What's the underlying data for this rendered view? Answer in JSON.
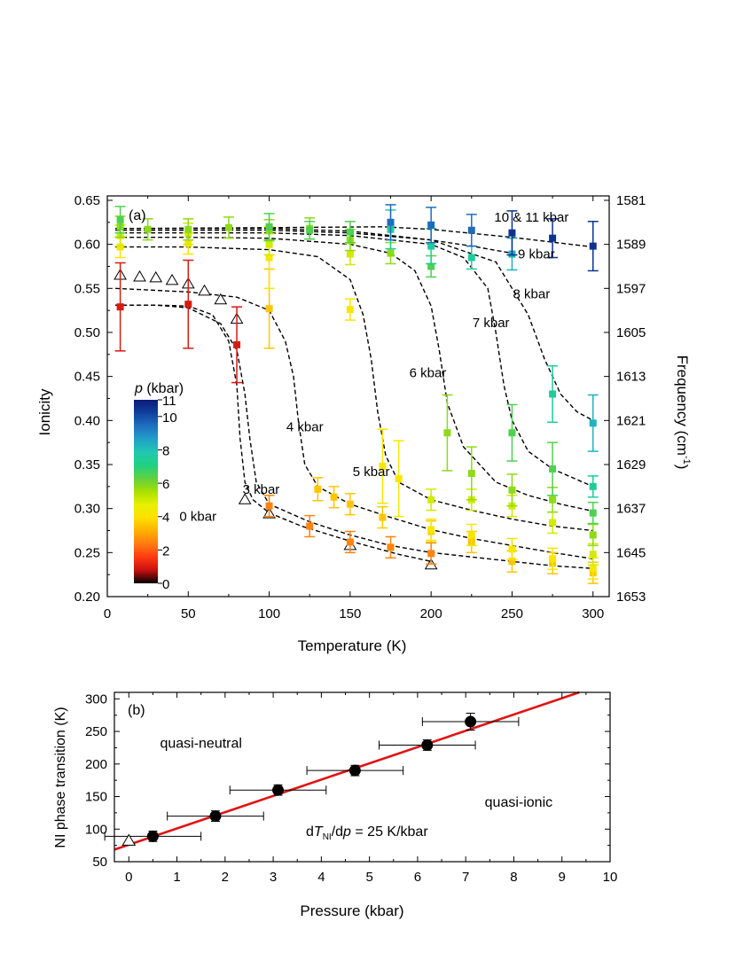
{
  "chart_data": [
    {
      "type": "scatter",
      "panel_label": "(a)",
      "xlabel": "Temperature (K)",
      "ylabel": "Ionicity",
      "y2label": "Frequency (cm",
      "y2label_sup": "-1",
      "y2label_end": ")",
      "xlim": [
        0,
        310
      ],
      "ylim": [
        0.2,
        0.655
      ],
      "xticks": [
        0,
        50,
        100,
        150,
        200,
        250,
        300
      ],
      "yticks": [
        0.2,
        0.25,
        0.3,
        0.35,
        0.4,
        0.45,
        0.5,
        0.55,
        0.6,
        0.65
      ],
      "y2ticks": [
        "1581",
        "1589",
        "1597",
        "1605",
        "1613",
        "1621",
        "1629",
        "1637",
        "1645",
        "1653"
      ],
      "colorbar": {
        "title_italic": "p",
        "title_rest": " (kbar)",
        "ticks": [
          "0",
          "2",
          "4",
          "6",
          "8",
          "10",
          "11"
        ],
        "range": [
          0,
          11
        ],
        "colors": [
          "#000000",
          "#c81010",
          "#ff3a10",
          "#ff7a10",
          "#ffb000",
          "#ffe000",
          "#e8f000",
          "#a8e000",
          "#60d040",
          "#20d080",
          "#20c8b0",
          "#20a0c8",
          "#2070c0",
          "#1040a0",
          "#0a1a78"
        ]
      },
      "pressure_labels": [
        {
          "text": "0 kbar",
          "x": 56,
          "y": 0.291
        },
        {
          "text": "3 kbar",
          "x": 95,
          "y": 0.322
        },
        {
          "text": "4 kbar",
          "x": 122,
          "y": 0.393
        },
        {
          "text": "5 kbar",
          "x": 163,
          "y": 0.342
        },
        {
          "text": "6 kbar",
          "x": 198,
          "y": 0.454
        },
        {
          "text": "7 kbar",
          "x": 237,
          "y": 0.511
        },
        {
          "text": "8 kbar",
          "x": 262,
          "y": 0.544
        },
        {
          "text": "9 kbar",
          "x": 265,
          "y": 0.589
        },
        {
          "text": "10 & 11 kbar",
          "x": 262,
          "y": 0.631
        }
      ],
      "fit_curves": [
        {
          "x": [
            5,
            30,
            50,
            65,
            75,
            80,
            82,
            85,
            90,
            100,
            120,
            150,
            180,
            200
          ],
          "y": [
            0.531,
            0.531,
            0.53,
            0.52,
            0.49,
            0.44,
            0.38,
            0.33,
            0.31,
            0.295,
            0.28,
            0.263,
            0.248,
            0.24
          ]
        },
        {
          "x": [
            5,
            30,
            50,
            70,
            80,
            85,
            88,
            92,
            100,
            125,
            150,
            175,
            200,
            225,
            250,
            275,
            300
          ],
          "y": [
            0.531,
            0.531,
            0.528,
            0.51,
            0.48,
            0.43,
            0.38,
            0.33,
            0.305,
            0.285,
            0.27,
            0.258,
            0.25,
            0.245,
            0.24,
            0.235,
            0.232
          ]
        },
        {
          "x": [
            5,
            50,
            80,
            100,
            110,
            115,
            118,
            122,
            130,
            150,
            175,
            200,
            225,
            250,
            275,
            300
          ],
          "y": [
            0.55,
            0.546,
            0.54,
            0.525,
            0.49,
            0.45,
            0.4,
            0.35,
            0.325,
            0.305,
            0.29,
            0.276,
            0.266,
            0.258,
            0.25,
            0.243
          ]
        },
        {
          "x": [
            5,
            50,
            100,
            130,
            150,
            158,
            163,
            167,
            172,
            180,
            200,
            225,
            250,
            275,
            300
          ],
          "y": [
            0.597,
            0.597,
            0.594,
            0.586,
            0.56,
            0.52,
            0.47,
            0.41,
            0.36,
            0.33,
            0.31,
            0.298,
            0.288,
            0.28,
            0.275
          ]
        },
        {
          "x": [
            5,
            50,
            100,
            150,
            175,
            190,
            200,
            205,
            210,
            220,
            240,
            260,
            280,
            300
          ],
          "y": [
            0.608,
            0.608,
            0.607,
            0.6,
            0.59,
            0.57,
            0.53,
            0.48,
            0.42,
            0.37,
            0.33,
            0.315,
            0.305,
            0.297
          ]
        },
        {
          "x": [
            5,
            50,
            100,
            150,
            200,
            220,
            235,
            240,
            245,
            250,
            260,
            275,
            300
          ],
          "y": [
            0.613,
            0.613,
            0.613,
            0.61,
            0.6,
            0.585,
            0.55,
            0.5,
            0.44,
            0.4,
            0.365,
            0.345,
            0.325
          ]
        },
        {
          "x": [
            5,
            50,
            100,
            150,
            200,
            240,
            260,
            270,
            280,
            290,
            300
          ],
          "y": [
            0.616,
            0.616,
            0.616,
            0.613,
            0.605,
            0.58,
            0.52,
            0.47,
            0.43,
            0.41,
            0.4
          ]
        },
        {
          "x": [
            5,
            100,
            150,
            200,
            225,
            250
          ],
          "y": [
            0.618,
            0.618,
            0.615,
            0.605,
            0.598,
            0.59
          ]
        },
        {
          "x": [
            5,
            100,
            170,
            200,
            250,
            300
          ],
          "y": [
            0.618,
            0.619,
            0.62,
            0.617,
            0.608,
            0.597
          ]
        }
      ],
      "series": [
        {
          "p": 0,
          "marker": "triangle-open",
          "errorbars": false,
          "x": [
            8,
            20,
            30,
            40,
            50,
            60,
            70,
            80,
            85,
            100,
            150,
            200
          ],
          "y": [
            0.565,
            0.563,
            0.562,
            0.559,
            0.555,
            0.547,
            0.537,
            0.515,
            0.31,
            0.294,
            0.258,
            0.236
          ]
        },
        {
          "p": 1,
          "marker": "square",
          "errorbars": true,
          "x": [
            8,
            50,
            80
          ],
          "y": [
            0.529,
            0.532,
            0.486
          ],
          "err": [
            0.05,
            0.05,
            0.043
          ]
        },
        {
          "p": 2.5,
          "marker": "square",
          "errorbars": true,
          "x": [
            100,
            125,
            150,
            175,
            200
          ],
          "y": [
            0.303,
            0.28,
            0.262,
            0.256,
            0.249
          ],
          "err": [
            0.012,
            0.012,
            0.012,
            0.012,
            0.012
          ]
        },
        {
          "p": 3.5,
          "marker": "square",
          "errorbars": true,
          "x": [
            100,
            130,
            140,
            150,
            170,
            200,
            225,
            250,
            275,
            300
          ],
          "y": [
            0.527,
            0.322,
            0.313,
            0.305,
            0.29,
            0.274,
            0.262,
            0.24,
            0.238,
            0.227
          ],
          "err": [
            0.045,
            0.013,
            0.012,
            0.012,
            0.012,
            0.012,
            0.012,
            0.012,
            0.012,
            0.012
          ]
        },
        {
          "p": 4.2,
          "marker": "square",
          "errorbars": true,
          "x": [
            8,
            50,
            100,
            150,
            170,
            180,
            200,
            225,
            250,
            275,
            300
          ],
          "y": [
            0.597,
            0.601,
            0.585,
            0.526,
            0.348,
            0.334,
            0.276,
            0.27,
            0.254,
            0.243,
            0.232
          ],
          "err": [
            0.012,
            0.012,
            0.035,
            0.012,
            0.042,
            0.043,
            0.012,
            0.012,
            0.012,
            0.012,
            0.012
          ]
        },
        {
          "p": 5,
          "marker": "square",
          "errorbars": true,
          "x": [
            8,
            50,
            100,
            150,
            200,
            225,
            250,
            275,
            300
          ],
          "y": [
            0.61,
            0.612,
            0.6,
            0.589,
            0.31,
            0.31,
            0.303,
            0.284,
            0.248
          ],
          "err": [
            0.012,
            0.012,
            0.012,
            0.012,
            0.012,
            0.012,
            0.012,
            0.012,
            0.012
          ]
        },
        {
          "p": 5.8,
          "marker": "square",
          "errorbars": true,
          "x": [
            8,
            25,
            50,
            75,
            100,
            125,
            150,
            175,
            210,
            225,
            250,
            275,
            300
          ],
          "y": [
            0.62,
            0.617,
            0.617,
            0.619,
            0.616,
            0.618,
            0.605,
            0.59,
            0.386,
            0.34,
            0.321,
            0.31,
            0.27
          ],
          "err": [
            0.012,
            0.012,
            0.012,
            0.012,
            0.012,
            0.012,
            0.012,
            0.012,
            0.043,
            0.03,
            0.018,
            0.014,
            0.012
          ]
        },
        {
          "p": 6.5,
          "marker": "square",
          "errorbars": true,
          "x": [
            8,
            100,
            125,
            150,
            200,
            250,
            275,
            300
          ],
          "y": [
            0.628,
            0.62,
            0.616,
            0.614,
            0.575,
            0.386,
            0.345,
            0.295
          ],
          "err": [
            0.015,
            0.015,
            0.01,
            0.012,
            0.012,
            0.032,
            0.03,
            0.012
          ]
        },
        {
          "p": 7.5,
          "marker": "square",
          "errorbars": true,
          "x": [
            175,
            200,
            225,
            275,
            300
          ],
          "y": [
            0.617,
            0.598,
            0.585,
            0.43,
            0.325
          ],
          "err": [
            0.022,
            0.02,
            0.013,
            0.032,
            0.012
          ]
        },
        {
          "p": 8.3,
          "marker": "square",
          "errorbars": true,
          "x": [
            250,
            300
          ],
          "y": [
            0.589,
            0.397
          ],
          "err": [
            0.018,
            0.032
          ]
        },
        {
          "p": 9.5,
          "marker": "square",
          "errorbars": true,
          "x": [
            175,
            200,
            225
          ],
          "y": [
            0.625,
            0.622,
            0.616
          ],
          "err": [
            0.02,
            0.02,
            0.018
          ]
        },
        {
          "p": 10.5,
          "marker": "square",
          "errorbars": true,
          "x": [
            250,
            275,
            300
          ],
          "y": [
            0.613,
            0.607,
            0.598
          ],
          "err": [
            0.025,
            0.022,
            0.028
          ]
        }
      ]
    },
    {
      "type": "scatter",
      "panel_label": "(b)",
      "xlabel": "Pressure (kbar)",
      "ylabel": "NI phase transition (K)",
      "xlim": [
        -0.3,
        10
      ],
      "ylim": [
        50,
        310
      ],
      "xticks": [
        0,
        1,
        2,
        3,
        4,
        5,
        6,
        7,
        8,
        9,
        10
      ],
      "yticks": [
        50,
        100,
        150,
        200,
        250,
        300
      ],
      "points": {
        "x": [
          0.5,
          1.8,
          3.1,
          4.7,
          6.2,
          7.1
        ],
        "y": [
          89,
          120,
          160,
          190,
          229,
          265
        ],
        "xerr": [
          1.0,
          1.0,
          1.0,
          1.0,
          1.0,
          1.0
        ],
        "yerr": [
          8,
          8,
          8,
          8,
          8,
          13
        ]
      },
      "reference_point": {
        "x": 0,
        "y": 82
      },
      "fit_line": {
        "slope": 25,
        "intercept": 76
      },
      "region_labels": [
        {
          "text": "quasi-neutral",
          "x": 1.5,
          "y": 232
        },
        {
          "text": "quasi-ionic",
          "x": 8.1,
          "y": 141
        }
      ],
      "slope_label": {
        "prefix": "d",
        "T": "T",
        "sub": "NI",
        "mid": "/d",
        "p": "p",
        "suffix": " = 25 K/kbar"
      }
    }
  ]
}
